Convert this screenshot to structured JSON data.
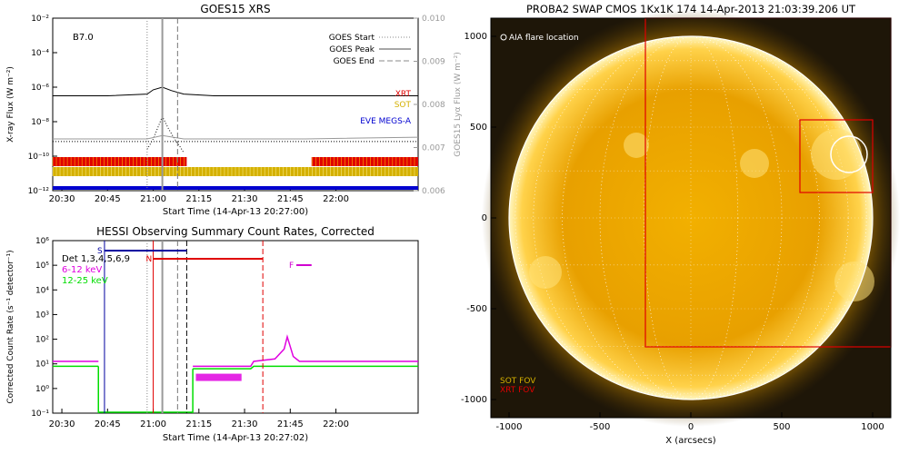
{
  "chart_data": [
    {
      "type": "line",
      "title": "GOES15 XRS",
      "xlabel": "Start Time (14-Apr-13 20:27:00)",
      "ylabel": "X-ray Flux (W m⁻²)",
      "y2label": "GOES15 Lyα Flux (W m⁻²)",
      "class_label": "B7.0",
      "x_ticks": [
        "20:30",
        "20:45",
        "21:00",
        "21:15",
        "21:30",
        "21:45",
        "22:00"
      ],
      "y_ticks": [
        "10⁻¹²",
        "10⁻¹⁰",
        "10⁻⁸",
        "10⁻⁶",
        "10⁻⁴",
        "10⁻²"
      ],
      "y2_ticks": [
        "0.006",
        "0.007",
        "0.008",
        "0.009",
        "0.010"
      ],
      "ylim_log10": [
        -12,
        -2
      ],
      "y2lim": [
        0.006,
        0.01
      ],
      "legend": [
        {
          "label": "GOES Start",
          "style": "dotted"
        },
        {
          "label": "GOES Peak",
          "style": "solid"
        },
        {
          "label": "GOES End",
          "style": "dashed"
        }
      ],
      "instrument_labels": [
        {
          "label": "XRT",
          "color": "#e00000"
        },
        {
          "label": "SOT",
          "color": "#d4b000"
        },
        {
          "label": "EVE MEGS-A",
          "color": "#0000d0"
        }
      ],
      "event_times": {
        "start": "20:58",
        "peak": "21:03",
        "end": "21:08"
      },
      "series": [
        {
          "name": "long-channel",
          "color": "#000000",
          "x": [
            "20:27",
            "20:45",
            "20:58",
            "21:00",
            "21:03",
            "21:06",
            "21:10",
            "21:20",
            "21:40",
            "22:00",
            "22:27"
          ],
          "y_log10": [
            -6.5,
            -6.5,
            -6.4,
            -6.15,
            -6.0,
            -6.2,
            -6.4,
            -6.5,
            -6.5,
            -6.5,
            -6.5
          ]
        },
        {
          "name": "short-channel",
          "color": "#000000",
          "style": "dotted",
          "x": [
            "20:58",
            "21:00",
            "21:03",
            "21:05",
            "21:07",
            "21:09",
            "21:10"
          ],
          "y_log10": [
            -9.6,
            -9.0,
            -7.7,
            -8.4,
            -9.0,
            -9.5,
            -9.8
          ]
        },
        {
          "name": "lya",
          "color": "#999999",
          "x": [
            "20:27",
            "20:58",
            "21:03",
            "21:10",
            "21:50",
            "22:27"
          ],
          "y_log10": [
            -9.0,
            -9.0,
            -8.8,
            -9.0,
            -9.0,
            -8.9
          ]
        }
      ]
    },
    {
      "type": "line",
      "title": "HESSI Observing Summary Count Rates, Corrected",
      "xlabel": "Start Time (14-Apr-13 20:27:02)",
      "ylabel": "Corrected Count Rate (s⁻¹ detector⁻¹)",
      "x_ticks": [
        "20:30",
        "20:45",
        "21:00",
        "21:15",
        "21:30",
        "21:45",
        "22:00"
      ],
      "y_ticks": [
        "10⁻¹",
        "10⁰",
        "10¹",
        "10²",
        "10³",
        "10⁴",
        "10⁵",
        "10⁶"
      ],
      "ylim_log10": [
        -1,
        6
      ],
      "legend": [
        {
          "label": "Det 1,3,4,5,6,9",
          "color": "#000000"
        },
        {
          "label": "6-12 keV",
          "color": "#e000e0"
        },
        {
          "label": "12-25 keV",
          "color": "#00dd00"
        }
      ],
      "flags": [
        {
          "label": "S",
          "color": "#0000a0",
          "start": "20:44",
          "end": "21:11"
        },
        {
          "label": "N",
          "color": "#e00000",
          "start": "21:00",
          "end": "21:36"
        },
        {
          "label": "F",
          "color": "#d000d0",
          "start": "21:47",
          "end": "21:52"
        }
      ],
      "series": [
        {
          "name": "6-12 keV",
          "color": "#e000e0",
          "x": [
            "20:27",
            "20:42",
            "21:12",
            "21:13",
            "21:20",
            "21:32",
            "21:33",
            "21:40",
            "21:43",
            "21:44",
            "21:45",
            "21:46",
            "21:48",
            "21:55",
            "22:27"
          ],
          "y_log10": [
            1.1,
            1.1,
            null,
            0.9,
            0.9,
            0.9,
            1.1,
            1.2,
            1.6,
            2.1,
            1.7,
            1.3,
            1.1,
            1.1,
            1.1
          ]
        },
        {
          "name": "12-25 keV",
          "color": "#00dd00",
          "x": [
            "20:27",
            "20:42",
            "21:12",
            "21:13",
            "21:32",
            "21:33",
            "22:27"
          ],
          "y_log10": [
            0.9,
            0.9,
            null,
            0.8,
            0.8,
            0.9,
            0.9
          ]
        }
      ]
    },
    {
      "type": "heatmap",
      "title": "PROBA2 SWAP CMOS 1Kx1K 174 14-Apr-2013 21:03:39.206 UT",
      "xlabel": "X (arcsecs)",
      "x_ticks": [
        "-1000",
        "-500",
        "0",
        "500",
        "1000"
      ],
      "y_ticks": [
        "-1000",
        "-500",
        "0",
        "500",
        "1000"
      ],
      "xlim": [
        -1100,
        1100
      ],
      "ylim": [
        -1100,
        1100
      ],
      "annotations": [
        {
          "label": "AIA flare location",
          "color": "#ffffff"
        },
        {
          "label": "SOT FOV",
          "color": "#d4b000"
        },
        {
          "label": "XRT FOV",
          "color": "#e00000"
        }
      ],
      "flare_location": {
        "x": 870,
        "y": 350
      },
      "xrt_fov": {
        "x0": -250,
        "x1": 1100,
        "y0": -710,
        "y1": 1100
      },
      "sot_fov": {
        "x0": 600,
        "x1": 1000,
        "y0": 140,
        "y1": 540
      }
    }
  ]
}
